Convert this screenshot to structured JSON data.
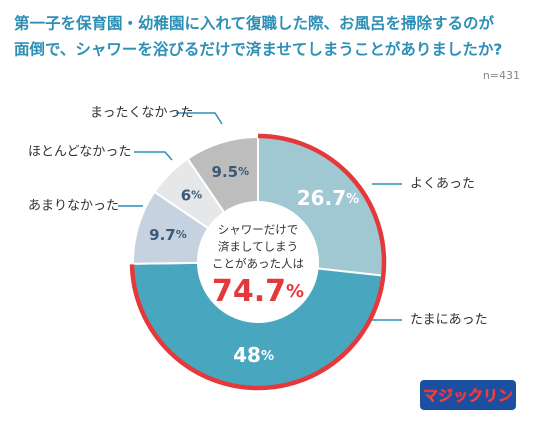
{
  "chart_data": {
    "type": "donut",
    "title": [
      "第一子を保育園・幼稚園に入れて復職した際、お風呂を掃除するのが",
      "面倒で、シャワーを浴びるだけで済ませてしまうことがありましたか?"
    ],
    "note": "n=431",
    "categories": [
      "よくあった",
      "たまにあった",
      "あまりなかった",
      "ほとんどなかった",
      "まったくなかった"
    ],
    "values": [
      26.7,
      48,
      9.7,
      6,
      9.5
    ],
    "value_labels": [
      "26.7%",
      "48%",
      "9.7%",
      "6%",
      "9.5%"
    ],
    "colors": [
      "#9fc8d3",
      "#48a7be",
      "#c6d2e0",
      "#e6e7e9",
      "#bdbdbd"
    ],
    "highlight": {
      "text": [
        "シャワーだけで",
        "済ましてしまう",
        "ことがあった人は"
      ],
      "value": 74.7,
      "value_label": "74.7%",
      "color": "#e5383b"
    },
    "logo": "マジックリン"
  }
}
